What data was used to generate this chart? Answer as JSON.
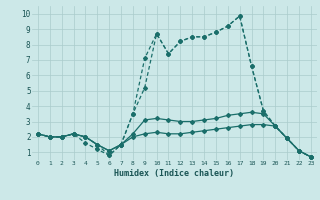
{
  "xlabel": "Humidex (Indice chaleur)",
  "bg_color": "#cce8e8",
  "grid_color": "#aacccc",
  "line_color": "#1a6e6a",
  "xlim": [
    -0.5,
    23.5
  ],
  "ylim": [
    0.5,
    10.5
  ],
  "xticks": [
    0,
    1,
    2,
    3,
    4,
    5,
    6,
    7,
    8,
    9,
    10,
    11,
    12,
    13,
    14,
    15,
    16,
    17,
    18,
    19,
    20,
    21,
    22,
    23
  ],
  "yticks": [
    1,
    2,
    3,
    4,
    5,
    6,
    7,
    8,
    9,
    10
  ],
  "series1_x": [
    0,
    1,
    2,
    3,
    4,
    5,
    6,
    7,
    8,
    9,
    10,
    11,
    12,
    13,
    14,
    15,
    16,
    17,
    18,
    19,
    20,
    21,
    22,
    23
  ],
  "series1_y": [
    2.2,
    2.0,
    2.0,
    2.2,
    2.0,
    1.5,
    1.1,
    1.5,
    2.0,
    2.2,
    2.3,
    2.2,
    2.2,
    2.3,
    2.4,
    2.5,
    2.6,
    2.7,
    2.8,
    2.8,
    2.7,
    1.9,
    1.1,
    0.7
  ],
  "series2_x": [
    0,
    1,
    2,
    3,
    4,
    5,
    6,
    7,
    8,
    9,
    10,
    11,
    12,
    13,
    14,
    15,
    16,
    17,
    18,
    19,
    20,
    21,
    22,
    23
  ],
  "series2_y": [
    2.2,
    2.0,
    2.0,
    2.2,
    2.0,
    1.5,
    1.1,
    1.5,
    2.2,
    3.1,
    3.2,
    3.1,
    3.0,
    3.0,
    3.1,
    3.2,
    3.4,
    3.5,
    3.6,
    3.5,
    2.7,
    1.9,
    1.1,
    0.7
  ],
  "series3_x": [
    0,
    1,
    2,
    3,
    4,
    5,
    6,
    7,
    8,
    9,
    10,
    11,
    12,
    13,
    14,
    15,
    16,
    17,
    18,
    19,
    20,
    21,
    22,
    23
  ],
  "series3_y": [
    2.2,
    2.0,
    2.0,
    2.2,
    2.0,
    1.5,
    0.8,
    1.5,
    3.5,
    5.2,
    8.7,
    7.4,
    8.2,
    8.5,
    8.5,
    8.8,
    9.2,
    9.85,
    6.6,
    3.7,
    2.7,
    1.9,
    1.1,
    0.7
  ],
  "series4_x": [
    0,
    1,
    2,
    3,
    4,
    5,
    6,
    7,
    8,
    9,
    10,
    11,
    12,
    13,
    14,
    15,
    16,
    17,
    18,
    19,
    20,
    21,
    22,
    23
  ],
  "series4_y": [
    2.2,
    2.0,
    2.0,
    2.2,
    1.6,
    1.2,
    0.8,
    1.5,
    3.5,
    7.1,
    8.7,
    7.4,
    8.2,
    8.5,
    8.5,
    8.8,
    9.2,
    9.85,
    6.6,
    3.7,
    2.7,
    1.9,
    1.1,
    0.7
  ]
}
